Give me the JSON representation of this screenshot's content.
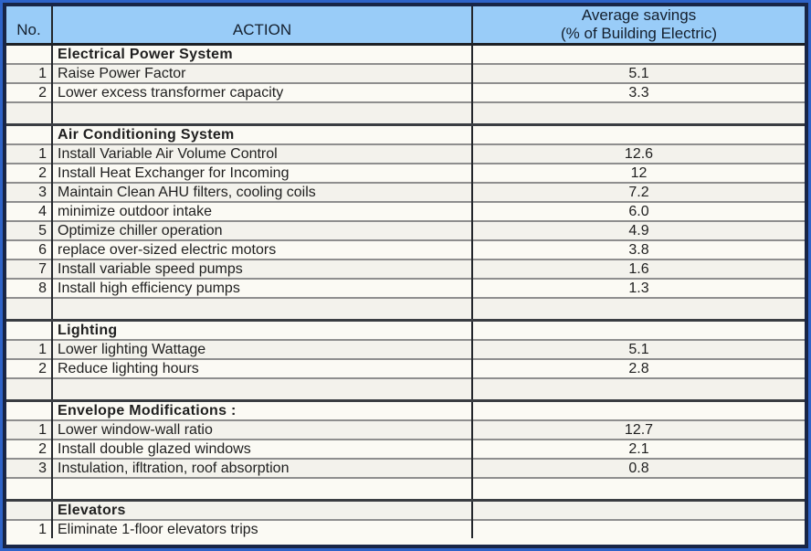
{
  "table": {
    "header": {
      "no": "No.",
      "action": "ACTION",
      "savings_line1": "Average savings",
      "savings_line2": "(% of Building Electric)"
    },
    "sections": [
      {
        "title": "Electrical Power System",
        "rows": [
          {
            "no": "1",
            "action": "Raise Power Factor",
            "value": "5.1"
          },
          {
            "no": "2",
            "action": "Lower excess transformer capacity",
            "value": "3.3"
          }
        ]
      },
      {
        "title": "Air Conditioning System",
        "rows": [
          {
            "no": "1",
            "action": "Install Variable Air Volume Control",
            "value": "12.6"
          },
          {
            "no": "2",
            "action": "Install Heat Exchanger for Incoming",
            "value": "12"
          },
          {
            "no": "3",
            "action": "Maintain Clean AHU filters, cooling coils",
            "value": "7.2"
          },
          {
            "no": "4",
            "action": "minimize outdoor intake",
            "value": "6.0"
          },
          {
            "no": "5",
            "action": "Optimize chiller operation",
            "value": "4.9"
          },
          {
            "no": "6",
            "action": "replace over-sized electric motors",
            "value": "3.8"
          },
          {
            "no": "7",
            "action": "Install variable speed pumps",
            "value": "1.6"
          },
          {
            "no": "8",
            "action": "Install high efficiency pumps",
            "value": "1.3"
          }
        ]
      },
      {
        "title": "Lighting",
        "rows": [
          {
            "no": "1",
            "action": "Lower lighting Wattage",
            "value": "5.1"
          },
          {
            "no": "2",
            "action": "Reduce lighting hours",
            "value": "2.8"
          }
        ]
      },
      {
        "title": "Envelope Modifications :",
        "rows": [
          {
            "no": "1",
            "action": "Lower window-wall ratio",
            "value": "12.7"
          },
          {
            "no": "2",
            "action": "Install double glazed windows",
            "value": "2.1"
          },
          {
            "no": "3",
            "action": "Instulation, ifltration, roof absorption",
            "value": "0.8"
          }
        ]
      },
      {
        "title": "Elevators",
        "rows": [
          {
            "no": "1",
            "action": "Eliminate 1-floor elevators trips",
            "value": ""
          }
        ]
      }
    ]
  },
  "colors": {
    "frame_outer_blue": "#2e63c8",
    "frame_inner_navy": "#182546",
    "header_bg": "#99ccf8",
    "header_text": "#15202e",
    "cell_bg": "#fbfaf4",
    "grid_minor": "#8e8e8e",
    "grid_major": "#3a3d42",
    "body_text": "#1f1f1f"
  },
  "chart_data": {
    "type": "table",
    "title": "Average savings (% of Building Electric) by action",
    "columns": [
      "No.",
      "ACTION",
      "Average savings (% of Building Electric)"
    ],
    "rows": [
      [
        "",
        "Electrical Power System",
        ""
      ],
      [
        "1",
        "Raise Power Factor",
        "5.1"
      ],
      [
        "2",
        "Lower excess transformer capacity",
        "3.3"
      ],
      [
        "",
        "Air Conditioning System",
        ""
      ],
      [
        "1",
        "Install Variable Air Volume Control",
        "12.6"
      ],
      [
        "2",
        "Install Heat Exchanger for Incoming",
        "12"
      ],
      [
        "3",
        "Maintain Clean AHU filters, cooling coils",
        "7.2"
      ],
      [
        "4",
        "minimize outdoor intake",
        "6.0"
      ],
      [
        "5",
        "Optimize chiller operation",
        "4.9"
      ],
      [
        "6",
        "replace over-sized electric motors",
        "3.8"
      ],
      [
        "7",
        "Install variable speed pumps",
        "1.6"
      ],
      [
        "8",
        "Install high efficiency pumps",
        "1.3"
      ],
      [
        "",
        "Lighting",
        ""
      ],
      [
        "1",
        "Lower lighting Wattage",
        "5.1"
      ],
      [
        "2",
        "Reduce lighting hours",
        "2.8"
      ],
      [
        "",
        "Envelope Modifications :",
        ""
      ],
      [
        "1",
        "Lower window-wall ratio",
        "12.7"
      ],
      [
        "2",
        "Install double glazed windows",
        "2.1"
      ],
      [
        "3",
        "Instulation, ifltration, roof absorption",
        "0.8"
      ],
      [
        "",
        "Elevators",
        ""
      ],
      [
        "1",
        "Eliminate 1-floor elevators trips",
        ""
      ]
    ]
  }
}
